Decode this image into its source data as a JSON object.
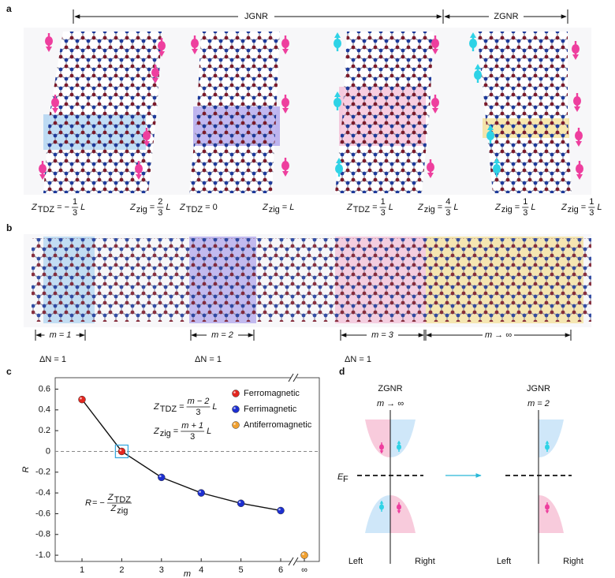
{
  "panel_a": {
    "label": "a",
    "ranges": [
      {
        "name": "JGNR"
      },
      {
        "name": "ZGNR"
      }
    ],
    "equations": [
      {
        "lhs": "Z",
        "sub": "TDZ",
        "op": "= −",
        "num": "1",
        "den": "3",
        "tail": "L"
      },
      {
        "lhs": "Z",
        "sub": "zig",
        "op": "=",
        "num": "2",
        "den": "3",
        "tail": "L"
      },
      {
        "lhs": "Z",
        "sub": "TDZ",
        "op": "= 0"
      },
      {
        "lhs": "Z",
        "sub": "zig",
        "op": "=",
        "tail": "L"
      },
      {
        "lhs": "Z",
        "sub": "TDZ",
        "op": "=",
        "num": "1",
        "den": "3",
        "tail": "L"
      },
      {
        "lhs": "Z",
        "sub": "zig",
        "op": "=",
        "num": "4",
        "den": "3",
        "tail": "L"
      },
      {
        "lhs": "Z",
        "sub": "zig",
        "op": "=",
        "num": "1",
        "den": "3",
        "tail": "L"
      },
      {
        "lhs": "Z",
        "sub": "zig",
        "op": "=",
        "num": "1",
        "den": "3",
        "tail": "L"
      }
    ]
  },
  "panel_b": {
    "label": "b",
    "segments": [
      {
        "m": "m = 1",
        "dn": "ΔN = 1"
      },
      {
        "m": "m = 2",
        "dn": "ΔN = 1"
      },
      {
        "m": "m = 3",
        "dn": "ΔN = 1"
      },
      {
        "m": "m → ∞"
      }
    ]
  },
  "panel_c": {
    "label": "c"
  },
  "chart_data": {
    "type": "line",
    "categories": [
      "1",
      "2",
      "3",
      "4",
      "5",
      "6",
      "∞"
    ],
    "series": [
      {
        "name": "Ferromagnetic",
        "color": "#e3261f",
        "values": [
          0.5,
          0,
          null,
          null,
          null,
          null,
          null
        ]
      },
      {
        "name": "Ferrimagnetic",
        "color": "#1d2fd0",
        "values": [
          null,
          null,
          -0.25,
          -0.4,
          -0.5,
          -0.57,
          null
        ]
      },
      {
        "name": "Antiferromagnetic",
        "color": "#f0a030",
        "values": [
          null,
          null,
          null,
          null,
          null,
          null,
          -1.0
        ]
      }
    ],
    "ylim": [
      -1.06,
      0.71
    ],
    "yticks": [
      0.6,
      0.4,
      0.2,
      0,
      -0.2,
      -0.4,
      -0.6,
      -0.8,
      {
        "value": -1,
        "label": "-1.0"
      }
    ],
    "xlabel": "m",
    "ylabel": "R",
    "zero_line": true,
    "axis_break": true,
    "legend": "upper right",
    "annotations": [
      {
        "lhs": "Z",
        "sub": "TDZ",
        "op": "=",
        "num": "m − 2",
        "den": "3",
        "tail": "L"
      },
      {
        "lhs": "Z",
        "sub": "zig",
        "op": "=",
        "num": "m + 1",
        "den": "3",
        "tail": "L"
      },
      {
        "lhs": "R",
        "op": "= −",
        "num": "Z",
        "num_sub": "TDZ",
        "den": "Z",
        "den_sub": "zig"
      }
    ]
  },
  "panel_d": {
    "label": "d",
    "left": {
      "title": "ZGNR",
      "subtitle": "m → ∞",
      "ef": "E",
      "ef_sub": "F",
      "left": "Left",
      "right": "Right"
    },
    "right": {
      "title": "JGNR",
      "subtitle": "m = 2",
      "left": "Left",
      "right": "Right"
    }
  }
}
